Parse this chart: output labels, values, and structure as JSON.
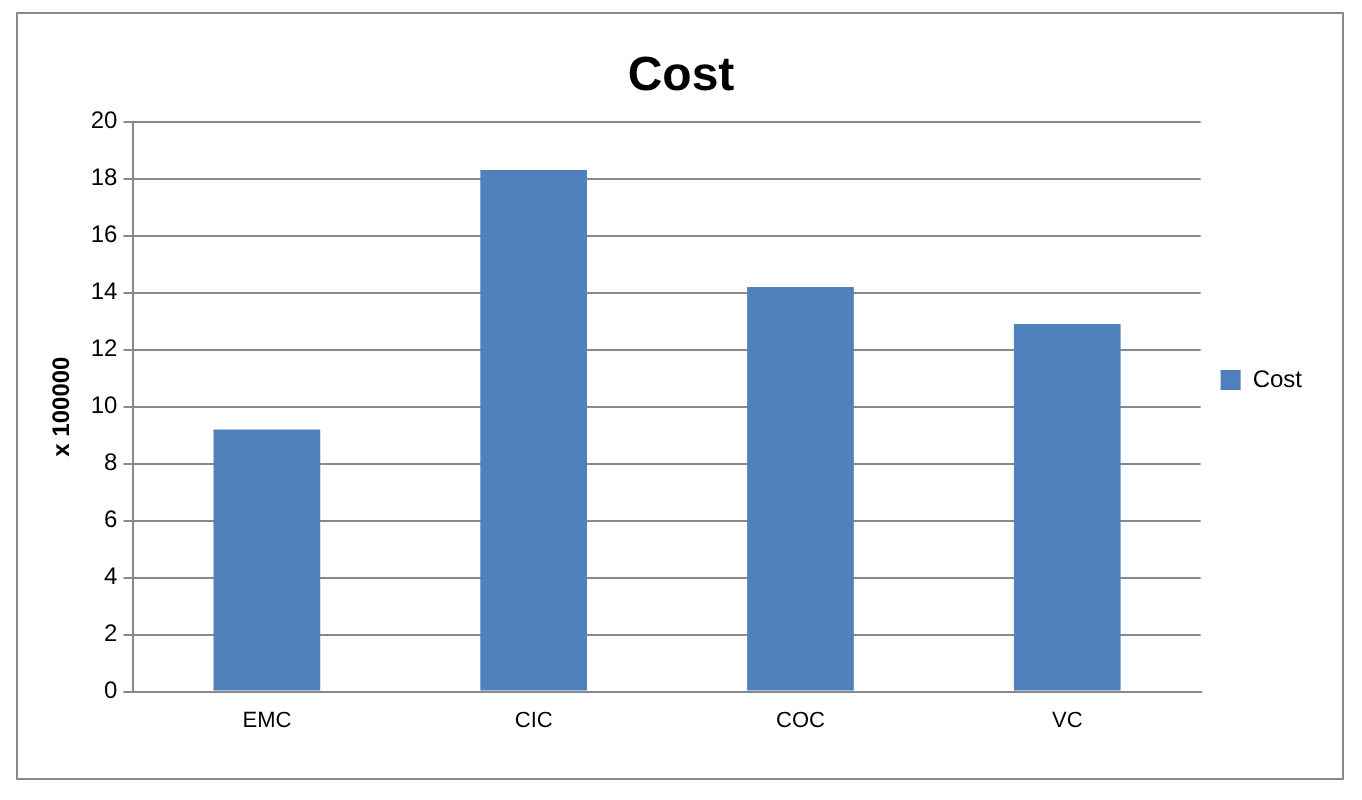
{
  "chart_data": {
    "type": "bar",
    "title": "Cost",
    "ylabel": "x 100000",
    "categories": [
      "EMC",
      "CIC",
      "COC",
      "VC"
    ],
    "series": [
      {
        "name": "Cost",
        "color": "#4f81bd",
        "values": [
          9.2,
          18.3,
          14.2,
          12.9
        ]
      }
    ],
    "ylim": [
      0,
      20
    ],
    "yticks": [
      0,
      2,
      4,
      6,
      8,
      10,
      12,
      14,
      16,
      18,
      20
    ],
    "grid": "y",
    "legend": "right"
  }
}
